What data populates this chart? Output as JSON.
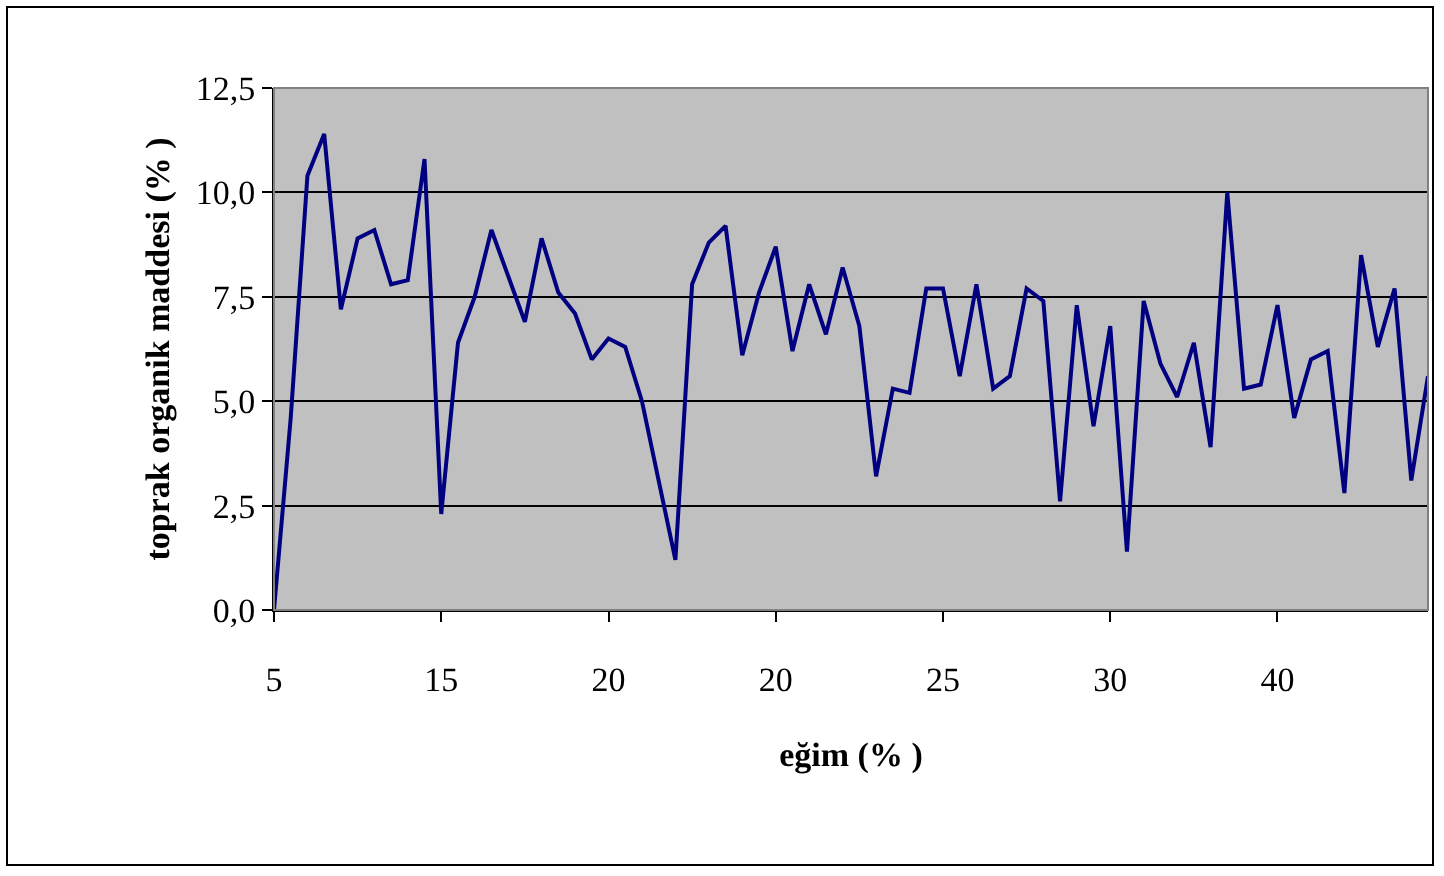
{
  "chart_data": {
    "type": "line",
    "xlabel": "eğim (% )",
    "ylabel": "toprak organik maddesi (% )",
    "categories": [
      "5",
      null,
      null,
      null,
      null,
      null,
      null,
      null,
      null,
      null,
      "15",
      null,
      null,
      null,
      null,
      null,
      null,
      null,
      null,
      null,
      "20",
      null,
      null,
      null,
      null,
      null,
      null,
      null,
      null,
      null,
      "20",
      null,
      null,
      null,
      null,
      null,
      null,
      null,
      null,
      null,
      "25",
      null,
      null,
      null,
      null,
      null,
      null,
      null,
      null,
      null,
      "30",
      null,
      null,
      null,
      null,
      null,
      null,
      null,
      null,
      null,
      "40",
      null,
      null,
      null,
      null,
      null,
      null,
      null,
      null,
      null
    ],
    "series": [
      {
        "color": "#000080",
        "values": [
          0,
          4.6,
          10.4,
          11.4,
          7.2,
          8.9,
          9.1,
          7.8,
          7.9,
          10.8,
          2.3,
          6.4,
          7.5,
          9.1,
          8.0,
          6.9,
          8.9,
          7.6,
          7.1,
          6.0,
          6.5,
          6.3,
          5.0,
          3.1,
          1.2,
          7.8,
          8.8,
          9.2,
          6.1,
          7.6,
          8.7,
          6.2,
          7.8,
          6.6,
          8.2,
          6.8,
          3.2,
          5.3,
          5.2,
          7.7,
          7.7,
          5.6,
          7.8,
          5.3,
          5.6,
          7.7,
          7.4,
          2.6,
          7.3,
          4.4,
          6.8,
          1.4,
          7.4,
          5.9,
          5.1,
          6.4,
          3.9,
          10.0,
          5.3,
          5.4,
          7.3,
          4.6,
          6.0,
          6.2,
          2.8,
          8.5,
          6.3,
          7.7,
          3.1,
          5.6
        ]
      }
    ],
    "ylim": [
      0,
      12.5
    ],
    "yticks": [
      {
        "value": 0,
        "label": "0,0"
      },
      {
        "value": 2.5,
        "label": "2,5"
      },
      {
        "value": 5,
        "label": "5,0"
      },
      {
        "value": 7.5,
        "label": "7,5"
      },
      {
        "value": 10,
        "label": "10,0"
      },
      {
        "value": 12.5,
        "label": "12,5"
      }
    ],
    "grid": "y",
    "marker": "none",
    "line_style": "solid"
  }
}
